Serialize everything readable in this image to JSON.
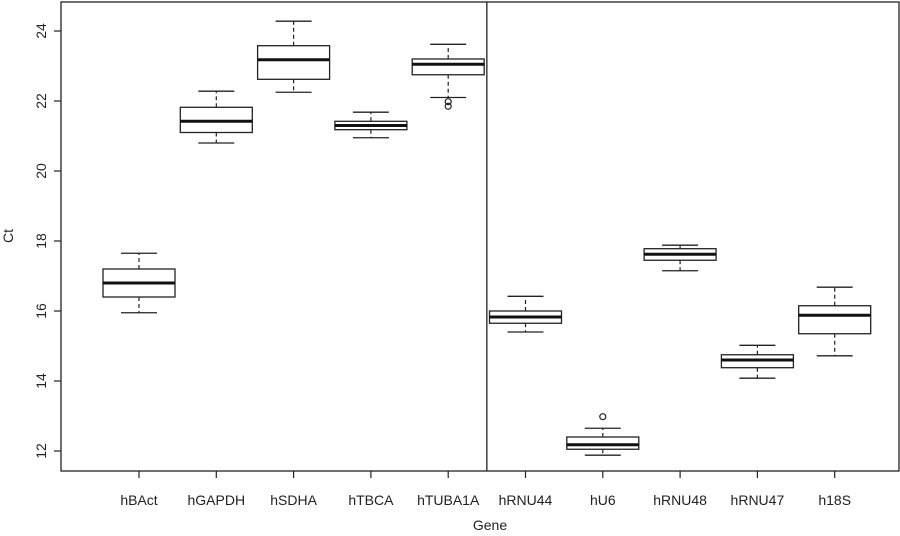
{
  "chart_data": {
    "type": "box",
    "xlabel": "Gene",
    "ylabel": "Ct",
    "ylim": [
      11.4,
      24.8
    ],
    "yticks": [
      12,
      14,
      16,
      18,
      20,
      22,
      24
    ],
    "grid": false,
    "legend": "none",
    "divider_after_category": "hTUBA1A",
    "categories": [
      "hBAct",
      "hGAPDH",
      "hSDHA",
      "hTBCA",
      "hTUBA1A",
      "hRNU44",
      "hU6",
      "hRNU48",
      "hRNU47",
      "h18S"
    ],
    "boxes": [
      {
        "category": "hBAct",
        "whisker_low": 15.95,
        "q1": 16.4,
        "median": 16.8,
        "q3": 17.2,
        "whisker_high": 17.65,
        "outliers": []
      },
      {
        "category": "hGAPDH",
        "whisker_low": 20.8,
        "q1": 21.1,
        "median": 21.42,
        "q3": 21.82,
        "whisker_high": 22.28,
        "outliers": []
      },
      {
        "category": "hSDHA",
        "whisker_low": 22.25,
        "q1": 22.62,
        "median": 23.18,
        "q3": 23.58,
        "whisker_high": 24.28,
        "outliers": []
      },
      {
        "category": "hTBCA",
        "whisker_low": 20.95,
        "q1": 21.18,
        "median": 21.3,
        "q3": 21.42,
        "whisker_high": 21.68,
        "outliers": []
      },
      {
        "category": "hTUBA1A",
        "whisker_low": 22.1,
        "q1": 22.75,
        "median": 23.05,
        "q3": 23.2,
        "whisker_high": 23.62,
        "outliers": [
          21.85,
          21.98
        ]
      },
      {
        "category": "hRNU44",
        "whisker_low": 15.4,
        "q1": 15.65,
        "median": 15.83,
        "q3": 16.0,
        "whisker_high": 16.42,
        "outliers": []
      },
      {
        "category": "hU6",
        "whisker_low": 11.88,
        "q1": 12.05,
        "median": 12.18,
        "q3": 12.4,
        "whisker_high": 12.65,
        "outliers": [
          12.98
        ]
      },
      {
        "category": "hRNU48",
        "whisker_low": 17.15,
        "q1": 17.45,
        "median": 17.62,
        "q3": 17.78,
        "whisker_high": 17.88,
        "outliers": []
      },
      {
        "category": "hRNU47",
        "whisker_low": 14.08,
        "q1": 14.38,
        "median": 14.6,
        "q3": 14.75,
        "whisker_high": 15.02,
        "outliers": []
      },
      {
        "category": "h18S",
        "whisker_low": 14.72,
        "q1": 15.35,
        "median": 15.88,
        "q3": 16.15,
        "whisker_high": 16.68,
        "outliers": []
      }
    ]
  }
}
